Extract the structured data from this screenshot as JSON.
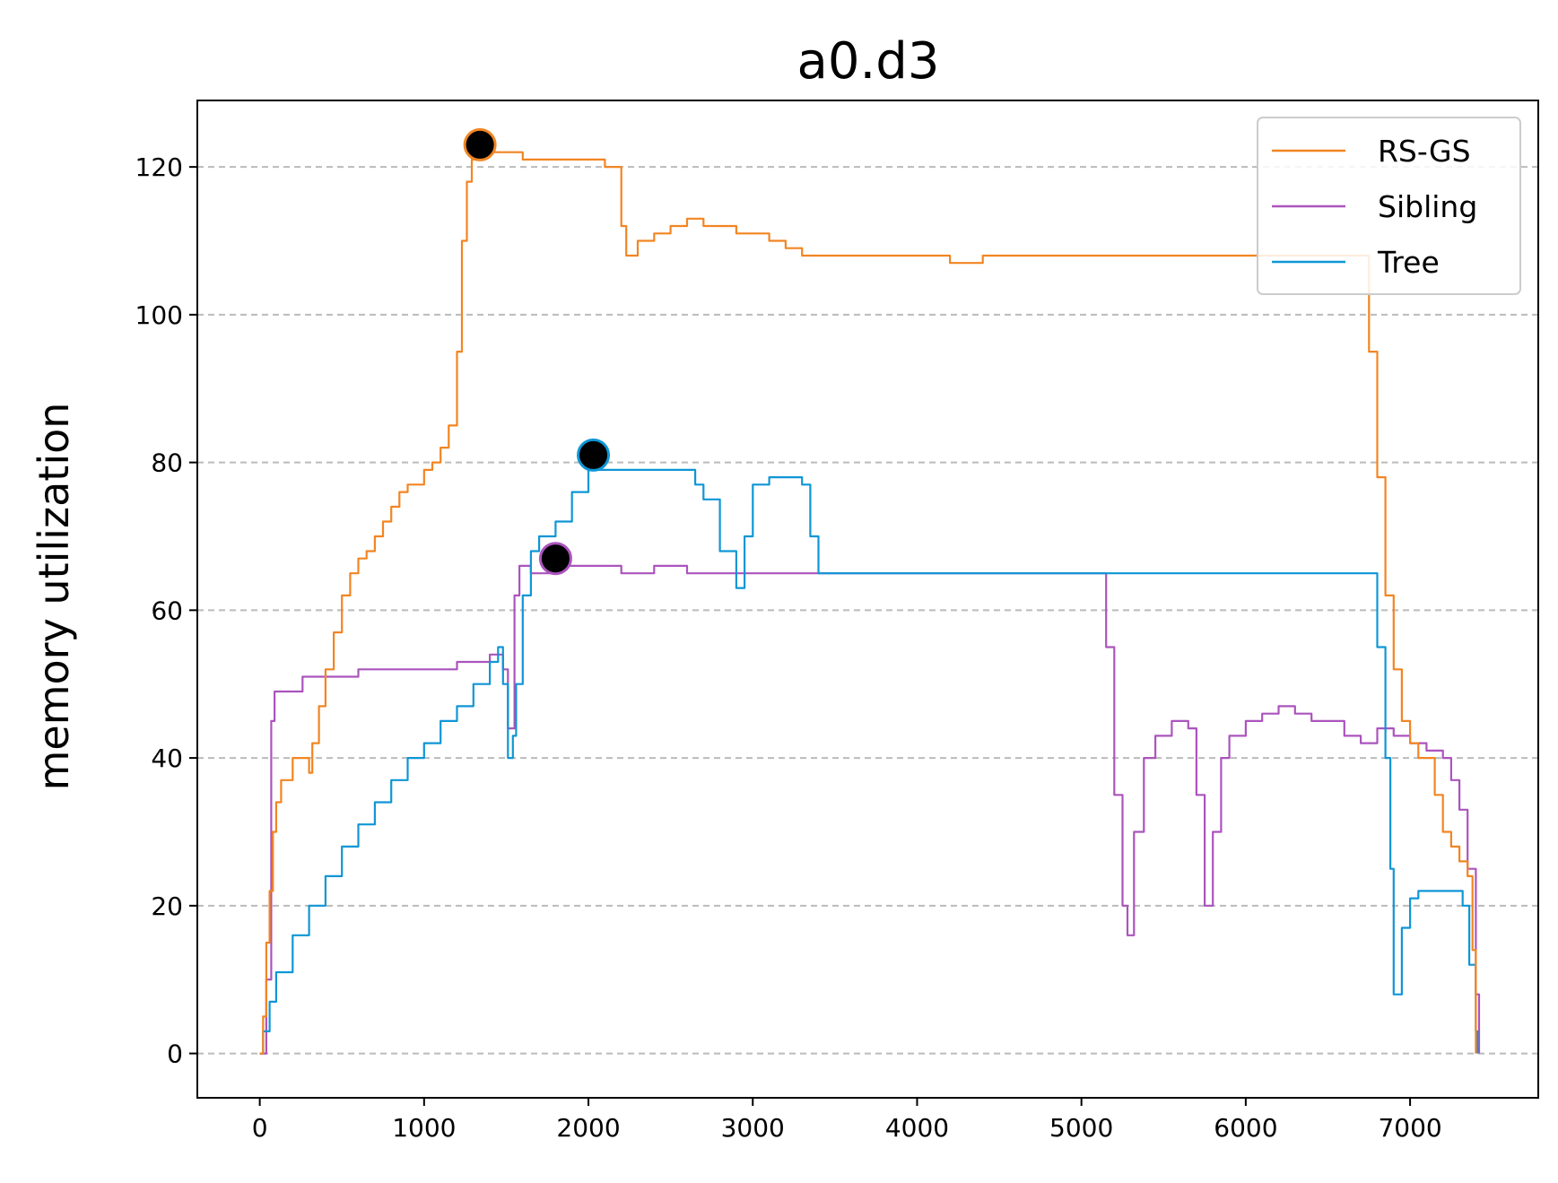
{
  "chart_data": {
    "type": "line",
    "title": "a0.d3",
    "xlabel": "",
    "ylabel": "memory utilization",
    "xlim": [
      -380,
      7780
    ],
    "ylim": [
      -6,
      129
    ],
    "xticks": [
      0,
      1000,
      2000,
      3000,
      4000,
      5000,
      6000,
      7000
    ],
    "yticks": [
      0,
      20,
      40,
      60,
      80,
      100,
      120
    ],
    "grid": "y-dashed",
    "legend": "top-right",
    "series": [
      {
        "name": "RS-GS",
        "color": "#f28522",
        "points": [
          [
            0,
            0
          ],
          [
            20,
            5
          ],
          [
            40,
            15
          ],
          [
            60,
            22
          ],
          [
            80,
            30
          ],
          [
            100,
            34
          ],
          [
            130,
            37
          ],
          [
            180,
            37
          ],
          [
            200,
            40
          ],
          [
            250,
            40
          ],
          [
            300,
            38
          ],
          [
            320,
            42
          ],
          [
            360,
            47
          ],
          [
            400,
            52
          ],
          [
            450,
            57
          ],
          [
            500,
            62
          ],
          [
            550,
            65
          ],
          [
            600,
            67
          ],
          [
            650,
            68
          ],
          [
            700,
            70
          ],
          [
            750,
            72
          ],
          [
            800,
            74
          ],
          [
            850,
            76
          ],
          [
            900,
            77
          ],
          [
            950,
            77
          ],
          [
            1000,
            79
          ],
          [
            1050,
            80
          ],
          [
            1100,
            82
          ],
          [
            1150,
            85
          ],
          [
            1200,
            95
          ],
          [
            1230,
            110
          ],
          [
            1260,
            118
          ],
          [
            1290,
            121
          ],
          [
            1340,
            123
          ],
          [
            1400,
            122
          ],
          [
            1500,
            122
          ],
          [
            1600,
            121
          ],
          [
            1700,
            121
          ],
          [
            1800,
            121
          ],
          [
            1900,
            121
          ],
          [
            2000,
            121
          ],
          [
            2100,
            120
          ],
          [
            2150,
            120
          ],
          [
            2200,
            112
          ],
          [
            2230,
            108
          ],
          [
            2300,
            110
          ],
          [
            2400,
            111
          ],
          [
            2500,
            112
          ],
          [
            2600,
            113
          ],
          [
            2700,
            112
          ],
          [
            2800,
            112
          ],
          [
            2900,
            111
          ],
          [
            3000,
            111
          ],
          [
            3100,
            110
          ],
          [
            3200,
            109
          ],
          [
            3300,
            108
          ],
          [
            3400,
            108
          ],
          [
            3600,
            108
          ],
          [
            3800,
            108
          ],
          [
            4000,
            108
          ],
          [
            4200,
            107
          ],
          [
            4400,
            108
          ],
          [
            4600,
            108
          ],
          [
            4800,
            108
          ],
          [
            5000,
            108
          ],
          [
            5200,
            108
          ],
          [
            5400,
            108
          ],
          [
            5600,
            108
          ],
          [
            5800,
            108
          ],
          [
            6000,
            108
          ],
          [
            6200,
            108
          ],
          [
            6400,
            108
          ],
          [
            6600,
            108
          ],
          [
            6700,
            108
          ],
          [
            6750,
            95
          ],
          [
            6800,
            78
          ],
          [
            6850,
            62
          ],
          [
            6900,
            52
          ],
          [
            6950,
            45
          ],
          [
            7000,
            42
          ],
          [
            7050,
            40
          ],
          [
            7100,
            40
          ],
          [
            7150,
            35
          ],
          [
            7200,
            30
          ],
          [
            7250,
            28
          ],
          [
            7300,
            26
          ],
          [
            7350,
            24
          ],
          [
            7380,
            14
          ],
          [
            7400,
            0
          ]
        ]
      },
      {
        "name": "Sibling",
        "color": "#ab54bd",
        "points": [
          [
            0,
            0
          ],
          [
            40,
            10
          ],
          [
            70,
            45
          ],
          [
            90,
            49
          ],
          [
            200,
            49
          ],
          [
            260,
            51
          ],
          [
            500,
            51
          ],
          [
            600,
            52
          ],
          [
            800,
            52
          ],
          [
            1000,
            52
          ],
          [
            1200,
            53
          ],
          [
            1400,
            54
          ],
          [
            1450,
            54
          ],
          [
            1480,
            52
          ],
          [
            1510,
            44
          ],
          [
            1550,
            62
          ],
          [
            1580,
            66
          ],
          [
            1650,
            65
          ],
          [
            1800,
            66
          ],
          [
            2000,
            66
          ],
          [
            2200,
            65
          ],
          [
            2400,
            66
          ],
          [
            2600,
            65
          ],
          [
            2800,
            65
          ],
          [
            3000,
            65
          ],
          [
            3200,
            65
          ],
          [
            3400,
            65
          ],
          [
            3600,
            65
          ],
          [
            3800,
            65
          ],
          [
            4000,
            65
          ],
          [
            4200,
            65
          ],
          [
            4400,
            65
          ],
          [
            4600,
            65
          ],
          [
            4800,
            65
          ],
          [
            5000,
            65
          ],
          [
            5100,
            65
          ],
          [
            5150,
            55
          ],
          [
            5200,
            35
          ],
          [
            5250,
            20
          ],
          [
            5280,
            16
          ],
          [
            5320,
            30
          ],
          [
            5380,
            40
          ],
          [
            5450,
            43
          ],
          [
            5550,
            45
          ],
          [
            5650,
            44
          ],
          [
            5700,
            35
          ],
          [
            5750,
            20
          ],
          [
            5800,
            30
          ],
          [
            5850,
            40
          ],
          [
            5900,
            43
          ],
          [
            6000,
            45
          ],
          [
            6100,
            46
          ],
          [
            6200,
            47
          ],
          [
            6300,
            46
          ],
          [
            6400,
            45
          ],
          [
            6500,
            45
          ],
          [
            6600,
            43
          ],
          [
            6700,
            42
          ],
          [
            6800,
            44
          ],
          [
            6900,
            43
          ],
          [
            7000,
            42
          ],
          [
            7100,
            41
          ],
          [
            7200,
            40
          ],
          [
            7250,
            37
          ],
          [
            7300,
            33
          ],
          [
            7350,
            25
          ],
          [
            7400,
            8
          ],
          [
            7420,
            0
          ]
        ]
      },
      {
        "name": "Tree",
        "color": "#0f96d6",
        "points": [
          [
            0,
            0
          ],
          [
            20,
            3
          ],
          [
            60,
            7
          ],
          [
            100,
            11
          ],
          [
            200,
            16
          ],
          [
            300,
            20
          ],
          [
            400,
            24
          ],
          [
            500,
            28
          ],
          [
            600,
            31
          ],
          [
            700,
            34
          ],
          [
            800,
            37
          ],
          [
            900,
            40
          ],
          [
            1000,
            42
          ],
          [
            1100,
            45
          ],
          [
            1200,
            47
          ],
          [
            1300,
            50
          ],
          [
            1400,
            53
          ],
          [
            1450,
            55
          ],
          [
            1480,
            50
          ],
          [
            1510,
            40
          ],
          [
            1540,
            43
          ],
          [
            1560,
            50
          ],
          [
            1600,
            62
          ],
          [
            1650,
            68
          ],
          [
            1700,
            70
          ],
          [
            1800,
            72
          ],
          [
            1900,
            76
          ],
          [
            2000,
            79
          ],
          [
            2050,
            79
          ],
          [
            2100,
            79
          ],
          [
            2200,
            79
          ],
          [
            2300,
            79
          ],
          [
            2400,
            79
          ],
          [
            2500,
            79
          ],
          [
            2600,
            79
          ],
          [
            2650,
            77
          ],
          [
            2700,
            75
          ],
          [
            2800,
            68
          ],
          [
            2900,
            63
          ],
          [
            2950,
            70
          ],
          [
            3000,
            77
          ],
          [
            3100,
            78
          ],
          [
            3200,
            78
          ],
          [
            3300,
            77
          ],
          [
            3350,
            70
          ],
          [
            3400,
            65
          ],
          [
            3500,
            65
          ],
          [
            3700,
            65
          ],
          [
            3900,
            65
          ],
          [
            4100,
            65
          ],
          [
            4300,
            65
          ],
          [
            4500,
            65
          ],
          [
            4700,
            65
          ],
          [
            4900,
            65
          ],
          [
            5100,
            65
          ],
          [
            5300,
            65
          ],
          [
            5500,
            65
          ],
          [
            5700,
            65
          ],
          [
            5900,
            65
          ],
          [
            6100,
            65
          ],
          [
            6300,
            65
          ],
          [
            6500,
            65
          ],
          [
            6700,
            65
          ],
          [
            6750,
            65
          ],
          [
            6800,
            55
          ],
          [
            6850,
            40
          ],
          [
            6880,
            25
          ],
          [
            6900,
            8
          ],
          [
            6950,
            17
          ],
          [
            7000,
            21
          ],
          [
            7050,
            22
          ],
          [
            7100,
            22
          ],
          [
            7200,
            22
          ],
          [
            7280,
            22
          ],
          [
            7320,
            20
          ],
          [
            7360,
            12
          ],
          [
            7400,
            3
          ],
          [
            7410,
            0
          ]
        ]
      }
    ],
    "peaks": [
      {
        "series": "RS-GS",
        "x": 1340,
        "y": 123
      },
      {
        "series": "Tree",
        "x": 2030,
        "y": 81
      },
      {
        "series": "Sibling",
        "x": 1800,
        "y": 67
      }
    ]
  }
}
